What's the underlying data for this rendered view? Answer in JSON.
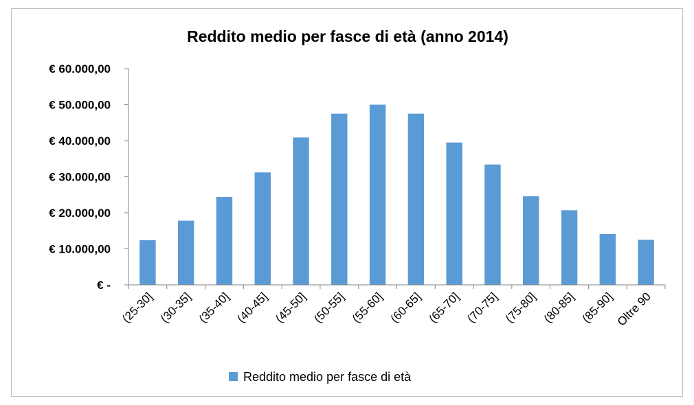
{
  "chart_data": {
    "type": "bar",
    "title": "Reddito medio per fasce di età (anno 2014)",
    "categories": [
      "(25-30]",
      "(30-35]",
      "(35-40]",
      "(40-45]",
      "(45-50]",
      "(50-55]",
      "(55-60]",
      "(60-65]",
      "(65-70]",
      "(70-75]",
      "(75-80]",
      "(80-85]",
      "(85-90]",
      "Oltre 90"
    ],
    "series": [
      {
        "name": "Reddito medio per fasce di età",
        "color": "#5b9bd5",
        "values": [
          12400,
          17800,
          24400,
          31200,
          40900,
          47500,
          50000,
          47500,
          39500,
          33400,
          24600,
          20700,
          14100,
          12500
        ]
      }
    ],
    "yticks": [
      {
        "value": 0,
        "label": "€ -"
      },
      {
        "value": 10000,
        "label": "€ 10.000,00"
      },
      {
        "value": 20000,
        "label": "€ 20.000,00"
      },
      {
        "value": 30000,
        "label": "€ 30.000,00"
      },
      {
        "value": 40000,
        "label": "€ 40.000,00"
      },
      {
        "value": 50000,
        "label": "€ 50.000,00"
      },
      {
        "value": 60000,
        "label": "€ 60.000,00"
      }
    ],
    "ylim": [
      0,
      60000
    ],
    "xlabel": "",
    "ylabel": "",
    "grid": false,
    "legend_position": "bottom"
  }
}
